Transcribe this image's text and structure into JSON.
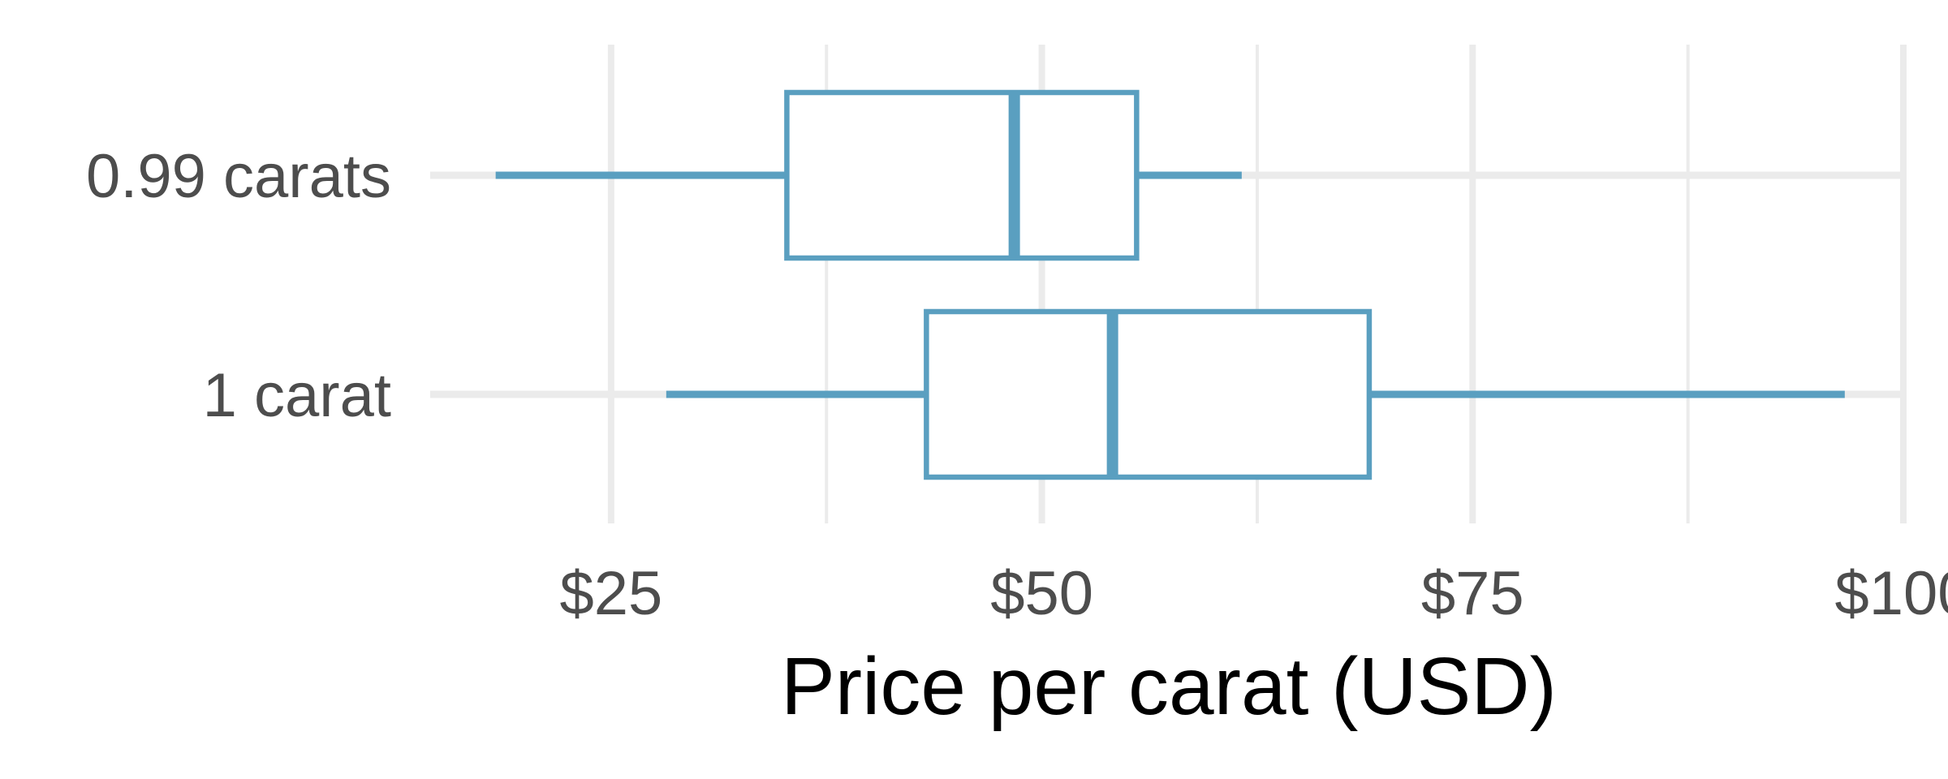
{
  "chart_data": {
    "type": "boxplot",
    "orientation": "horizontal",
    "xlabel": "Price per carat (USD)",
    "xlim": [
      14.5,
      100
    ],
    "x_ticks": [
      25,
      50,
      75,
      100
    ],
    "x_tick_labels": [
      "$25",
      "$50",
      "$75",
      "$100"
    ],
    "grid": true,
    "categories": [
      "0.99 carats",
      "1 carat"
    ],
    "series": [
      {
        "category": "0.99 carats",
        "whisker_low": 18.3,
        "q1": 35.2,
        "median": 48.4,
        "q3": 55.5,
        "whisker_high": 61.6
      },
      {
        "category": "1 carat",
        "whisker_low": 28.2,
        "q1": 43.3,
        "median": 54.1,
        "q3": 69.0,
        "whisker_high": 96.6
      }
    ],
    "colors": {
      "box": "#5a9fc0",
      "grid": "#ebebeb"
    }
  }
}
